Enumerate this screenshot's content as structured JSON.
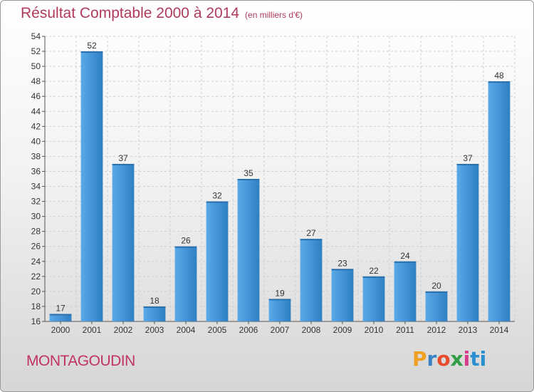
{
  "header": {
    "title": "Résultat Comptable 2000 à 2014",
    "subtitle": "(en milliers d'€)"
  },
  "footer": {
    "town": "MONTAGOUDIN",
    "logo": [
      "P",
      "r",
      "o",
      "x",
      "i",
      "ti"
    ],
    "logo_colors": [
      "#f0a020",
      "#3b82c4",
      "#e84b2c",
      "#2f9e44",
      "#d63a8a",
      "#2a8fd0"
    ]
  },
  "chart_data": {
    "type": "bar",
    "title": "Résultat Comptable 2000 à 2014",
    "subtitle": "(en milliers d'€)",
    "xlabel": "",
    "ylabel": "",
    "categories": [
      "2000",
      "2001",
      "2002",
      "2003",
      "2004",
      "2005",
      "2006",
      "2007",
      "2008",
      "2009",
      "2010",
      "2011",
      "2012",
      "2013",
      "2014"
    ],
    "values": [
      17,
      52,
      37,
      18,
      26,
      32,
      35,
      19,
      27,
      23,
      22,
      24,
      20,
      37,
      48
    ],
    "ylim": [
      16,
      54
    ],
    "yticks": [
      16,
      18,
      20,
      22,
      24,
      26,
      28,
      30,
      32,
      34,
      36,
      38,
      40,
      42,
      44,
      46,
      48,
      50,
      52,
      54
    ],
    "grid": true,
    "bar_color": "#3d8fd4",
    "bar_color_light": "#5aa9e8"
  }
}
